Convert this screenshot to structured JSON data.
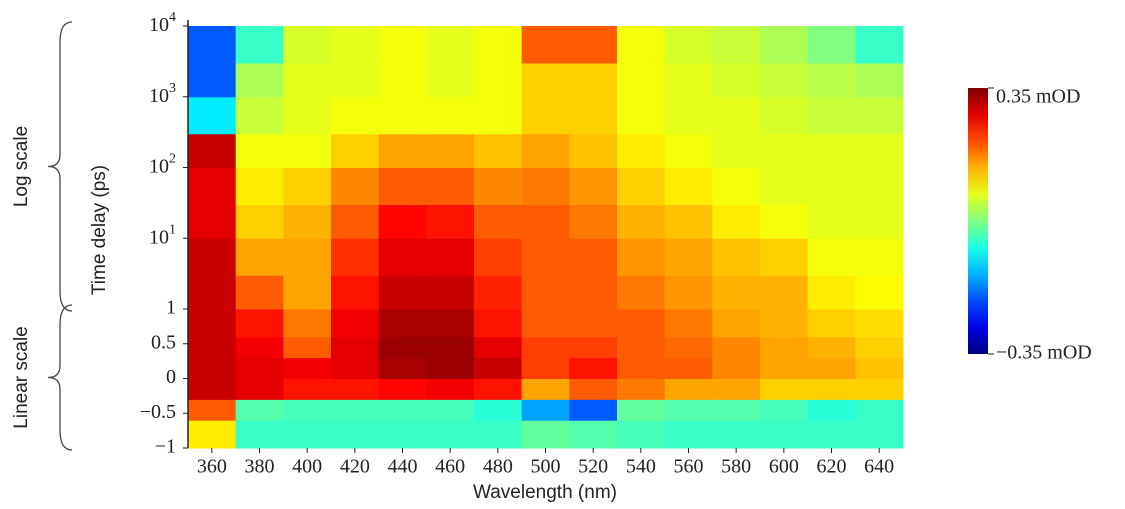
{
  "chart_data": {
    "type": "heatmap",
    "x_label": "Wavelength (nm)",
    "y_label": "Time delay (ps)",
    "xlim": [
      350,
      650
    ],
    "xticks": [
      360,
      380,
      400,
      420,
      440,
      460,
      480,
      500,
      520,
      540,
      560,
      580,
      600,
      620,
      640
    ],
    "ylim": [
      -1,
      10000
    ],
    "yscale": "linear-log",
    "yticks": [
      {
        "value": -1,
        "label": "−1"
      },
      {
        "value": -0.5,
        "label": "−0.5"
      },
      0,
      0.5,
      1,
      {
        "value": 10,
        "label": "10^1"
      },
      {
        "value": 100,
        "label": "10^2"
      },
      {
        "value": 1000,
        "label": "10^3"
      },
      {
        "value": 10000,
        "label": "10^4"
      }
    ],
    "annotations": [
      {
        "text": "Log scale",
        "range": [
          1,
          10000
        ]
      },
      {
        "text": "Linear scale",
        "range": [
          -1,
          1
        ]
      }
    ],
    "colormap": "jet",
    "zlim": [
      -0.35,
      0.35
    ],
    "colorbar_ticks": [
      {
        "value": 0.35,
        "label": "0.35 mOD"
      },
      {
        "value": -0.35,
        "label": "−0.35 mOD"
      }
    ],
    "x_edges": [
      350,
      370,
      390,
      410,
      430,
      450,
      470,
      490,
      510,
      530,
      550,
      570,
      590,
      610,
      630,
      650
    ],
    "y_edges": [
      -1,
      -0.6,
      -0.3,
      0,
      0.3,
      0.6,
      1,
      3,
      10,
      30,
      100,
      300,
      1000,
      3000,
      10000
    ],
    "z": [
      [
        0.1,
        -0.05,
        -0.05,
        -0.05,
        -0.05,
        -0.05,
        -0.05,
        -0.02,
        -0.03,
        -0.04,
        -0.05,
        -0.05,
        -0.05,
        -0.05,
        -0.05
      ],
      [
        0.2,
        -0.03,
        -0.04,
        -0.04,
        -0.04,
        -0.04,
        -0.06,
        -0.15,
        -0.2,
        -0.02,
        -0.03,
        -0.03,
        -0.04,
        -0.06,
        -0.05
      ],
      [
        0.3,
        0.28,
        0.25,
        0.25,
        0.26,
        0.27,
        0.25,
        0.15,
        0.2,
        0.18,
        0.15,
        0.15,
        0.12,
        0.12,
        0.12
      ],
      [
        0.3,
        0.28,
        0.27,
        0.28,
        0.32,
        0.33,
        0.3,
        0.22,
        0.25,
        0.2,
        0.2,
        0.17,
        0.15,
        0.15,
        0.13
      ],
      [
        0.3,
        0.27,
        0.2,
        0.28,
        0.33,
        0.33,
        0.28,
        0.22,
        0.22,
        0.2,
        0.19,
        0.17,
        0.15,
        0.14,
        0.12
      ],
      [
        0.3,
        0.25,
        0.18,
        0.27,
        0.32,
        0.32,
        0.25,
        0.2,
        0.2,
        0.2,
        0.18,
        0.15,
        0.14,
        0.12,
        0.11
      ],
      [
        0.3,
        0.2,
        0.15,
        0.25,
        0.3,
        0.3,
        0.24,
        0.2,
        0.2,
        0.18,
        0.16,
        0.14,
        0.14,
        0.1,
        0.09
      ],
      [
        0.3,
        0.15,
        0.15,
        0.23,
        0.28,
        0.28,
        0.22,
        0.2,
        0.2,
        0.16,
        0.15,
        0.13,
        0.12,
        0.08,
        0.08
      ],
      [
        0.28,
        0.12,
        0.14,
        0.2,
        0.26,
        0.25,
        0.2,
        0.2,
        0.18,
        0.14,
        0.13,
        0.1,
        0.08,
        0.07,
        0.07
      ],
      [
        0.28,
        0.1,
        0.12,
        0.17,
        0.2,
        0.2,
        0.17,
        0.18,
        0.16,
        0.12,
        0.1,
        0.08,
        0.07,
        0.07,
        0.07
      ],
      [
        0.3,
        0.08,
        0.08,
        0.12,
        0.15,
        0.15,
        0.13,
        0.15,
        0.13,
        0.1,
        0.08,
        0.07,
        0.07,
        0.07,
        0.07
      ],
      [
        -0.1,
        0.05,
        0.07,
        0.08,
        0.08,
        0.08,
        0.08,
        0.12,
        0.12,
        0.08,
        0.07,
        0.07,
        0.06,
        0.05,
        0.05
      ],
      [
        -0.2,
        0.03,
        0.07,
        0.07,
        0.08,
        0.07,
        0.08,
        0.12,
        0.12,
        0.08,
        0.07,
        0.06,
        0.05,
        0.04,
        0.03
      ],
      [
        -0.2,
        -0.05,
        0.06,
        0.07,
        0.08,
        0.07,
        0.08,
        0.2,
        0.2,
        0.08,
        0.06,
        0.05,
        0.03,
        0,
        -0.05
      ]
    ]
  }
}
